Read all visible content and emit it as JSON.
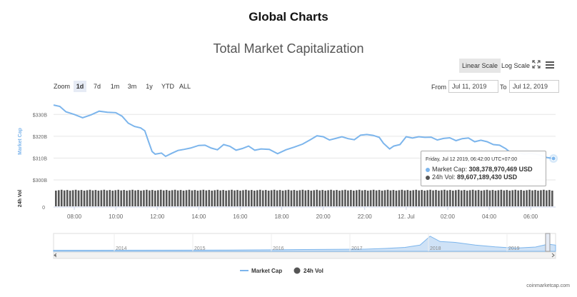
{
  "page": {
    "title": "Global Charts"
  },
  "chart": {
    "title": "Total Market Capitalization",
    "scale_buttons": {
      "linear": "Linear Scale",
      "log": "Log Scale"
    },
    "icons": {
      "expand": "expand-icon",
      "menu": "hamburger-menu-icon"
    },
    "zoom": {
      "label": "Zoom",
      "buttons": [
        "1d",
        "7d",
        "1m",
        "3m",
        "1y",
        "YTD",
        "ALL"
      ],
      "selected": "1d"
    },
    "range": {
      "from_label": "From",
      "from_value": "Jul 11, 2019",
      "to_label": "To",
      "to_value": "Jul 12, 2019"
    },
    "legend": [
      {
        "name": "Market Cap",
        "color": "#7cb5ec",
        "style": "line"
      },
      {
        "name": "24h Vol",
        "color": "#555555",
        "style": "dot"
      }
    ],
    "tooltip": {
      "date": "Friday, Jul 12 2019, 06:42:00 UTC+07:00",
      "market_cap_label": "Market Cap:",
      "market_cap_value": "308,378,970,469 USD",
      "vol_label": "24h Vol:",
      "vol_value": "89,607,189,430 USD"
    },
    "credit": "coinmarketcap.com",
    "colors": {
      "market_cap": "#7cb5ec",
      "volume": "#555555",
      "navigator_fill": "#cfe2f6",
      "grid": "#e6e6e6"
    }
  },
  "chart_data": {
    "type": "line",
    "title": "Total Market Capitalization",
    "y_axis": {
      "label": "Market Cap",
      "ticks": [
        "$300B",
        "$310B",
        "$320B",
        "$330B"
      ],
      "ylim": [
        300,
        335
      ],
      "unit": "billion USD"
    },
    "volume_axis": {
      "label": "24h Vol",
      "ticks": [
        "0"
      ]
    },
    "x_axis": {
      "ticks": [
        "08:00",
        "10:00",
        "12:00",
        "14:00",
        "16:00",
        "18:00",
        "20:00",
        "22:00",
        "12. Jul",
        "02:00",
        "04:00",
        "06:00"
      ],
      "range_hours": [
        7.0,
        31.2
      ]
    },
    "navigator_ticks": [
      "2014",
      "2015",
      "2016",
      "2017",
      "2018",
      "2019"
    ],
    "series": [
      {
        "name": "Market Cap",
        "x": [
          7.0,
          7.3,
          7.6,
          8.0,
          8.4,
          8.8,
          9.2,
          9.6,
          10.0,
          10.3,
          10.6,
          10.9,
          11.2,
          11.4,
          11.6,
          11.75,
          11.9,
          12.2,
          12.4,
          12.7,
          13.0,
          13.3,
          13.6,
          14.0,
          14.3,
          14.6,
          14.9,
          15.2,
          15.5,
          15.8,
          16.1,
          16.4,
          16.7,
          17.0,
          17.4,
          17.8,
          18.2,
          18.6,
          19.0,
          19.4,
          19.7,
          20.0,
          20.3,
          20.6,
          20.9,
          21.2,
          21.5,
          21.8,
          22.1,
          22.4,
          22.7,
          22.9,
          23.2,
          23.4,
          23.7,
          24.0,
          24.3,
          24.6,
          24.9,
          25.2,
          25.5,
          25.8,
          26.1,
          26.4,
          26.7,
          27.0,
          27.3,
          27.6,
          27.9,
          28.2,
          28.5,
          28.8,
          29.1,
          29.4,
          29.7,
          30.0,
          30.4,
          30.8,
          31.1
        ],
        "values": [
          334.3,
          333.7,
          331.2,
          330.0,
          328.5,
          329.8,
          331.5,
          331.0,
          330.8,
          329.2,
          326.0,
          324.5,
          323.8,
          322.5,
          317.0,
          313.0,
          311.8,
          312.3,
          310.8,
          312.2,
          313.5,
          314.0,
          314.6,
          315.8,
          315.9,
          314.6,
          313.8,
          316.2,
          315.4,
          313.6,
          314.4,
          315.5,
          313.6,
          314.2,
          314.0,
          312.0,
          313.8,
          315.0,
          316.4,
          318.5,
          320.2,
          319.8,
          318.3,
          319.0,
          319.8,
          318.9,
          318.4,
          320.5,
          320.8,
          320.4,
          319.5,
          316.8,
          314.2,
          315.5,
          316.2,
          319.8,
          319.2,
          319.8,
          319.5,
          319.6,
          318.3,
          319.0,
          319.3,
          318.0,
          318.9,
          319.2,
          317.5,
          318.2,
          317.5,
          316.2,
          315.9,
          314.3,
          312.0,
          312.5,
          311.8,
          312.2,
          311.5,
          310.2,
          309.8
        ]
      },
      {
        "name": "24h Vol",
        "approx_value_usd": 89607189430
      }
    ]
  }
}
